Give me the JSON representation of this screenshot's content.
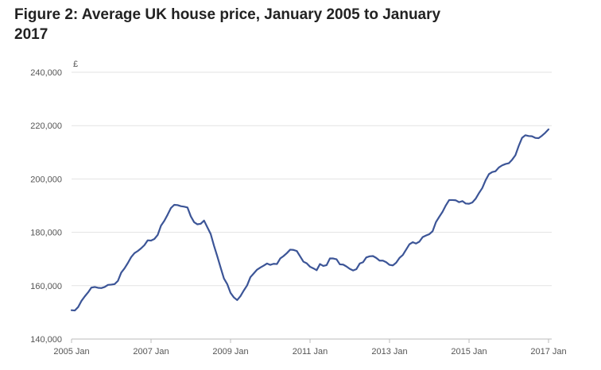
{
  "chart_data": {
    "type": "line",
    "title": "Figure 2: Average UK house price, January 2005 to January 2017",
    "ylabel": "£",
    "xlabel": "",
    "ylim": [
      140000,
      240000
    ],
    "y_ticks": [
      "140,000",
      "160,000",
      "180,000",
      "200,000",
      "220,000",
      "240,000"
    ],
    "y_tick_values": [
      140000,
      160000,
      180000,
      200000,
      220000,
      240000
    ],
    "x_ticks": [
      "2005 Jan",
      "2007 Jan",
      "2009 Jan",
      "2011 Jan",
      "2013 Jan",
      "2015 Jan",
      "2017 Jan"
    ],
    "x_tick_values": [
      2005,
      2007,
      2009,
      2011,
      2013,
      2015,
      2017
    ],
    "grid": true,
    "line_color": "#3c5597",
    "series": [
      {
        "x": [
          "2005-01",
          "2005-02",
          "2005-03",
          "2005-04",
          "2005-05",
          "2005-06",
          "2005-07",
          "2005-08",
          "2005-09",
          "2005-10",
          "2005-11",
          "2005-12",
          "2006-01",
          "2006-02",
          "2006-03",
          "2006-04",
          "2006-05",
          "2006-06",
          "2006-07",
          "2006-08",
          "2006-09",
          "2006-10",
          "2006-11",
          "2006-12",
          "2007-01",
          "2007-02",
          "2007-03",
          "2007-04",
          "2007-05",
          "2007-06",
          "2007-07",
          "2007-08",
          "2007-09",
          "2007-10",
          "2007-11",
          "2007-12",
          "2008-01",
          "2008-02",
          "2008-03",
          "2008-04",
          "2008-05",
          "2008-06",
          "2008-07",
          "2008-08",
          "2008-09",
          "2008-10",
          "2008-11",
          "2008-12",
          "2009-01",
          "2009-02",
          "2009-03",
          "2009-04",
          "2009-05",
          "2009-06",
          "2009-07",
          "2009-08",
          "2009-09",
          "2009-10",
          "2009-11",
          "2009-12",
          "2010-01",
          "2010-02",
          "2010-03",
          "2010-04",
          "2010-05",
          "2010-06",
          "2010-07",
          "2010-08",
          "2010-09",
          "2010-10",
          "2010-11",
          "2010-12",
          "2011-01",
          "2011-02",
          "2011-03",
          "2011-04",
          "2011-05",
          "2011-06",
          "2011-07",
          "2011-08",
          "2011-09",
          "2011-10",
          "2011-11",
          "2011-12",
          "2012-01",
          "2012-02",
          "2012-03",
          "2012-04",
          "2012-05",
          "2012-06",
          "2012-07",
          "2012-08",
          "2012-09",
          "2012-10",
          "2012-11",
          "2012-12",
          "2013-01",
          "2013-02",
          "2013-03",
          "2013-04",
          "2013-05",
          "2013-06",
          "2013-07",
          "2013-08",
          "2013-09",
          "2013-10",
          "2013-11",
          "2013-12",
          "2014-01",
          "2014-02",
          "2014-03",
          "2014-04",
          "2014-05",
          "2014-06",
          "2014-07",
          "2014-08",
          "2014-09",
          "2014-10",
          "2014-11",
          "2014-12",
          "2015-01",
          "2015-02",
          "2015-03",
          "2015-04",
          "2015-05",
          "2015-06",
          "2015-07",
          "2015-08",
          "2015-09",
          "2015-10",
          "2015-11",
          "2015-12",
          "2016-01",
          "2016-02",
          "2016-03",
          "2016-04",
          "2016-05",
          "2016-06",
          "2016-07",
          "2016-08",
          "2016-09",
          "2016-10",
          "2016-11",
          "2016-12",
          "2017-01"
        ],
        "values": [
          150800,
          150700,
          152000,
          154300,
          156000,
          157500,
          159300,
          159500,
          159200,
          159100,
          159500,
          160300,
          160400,
          160600,
          161800,
          164900,
          166500,
          168500,
          170700,
          172200,
          173000,
          174000,
          175200,
          177000,
          176900,
          177500,
          179000,
          182500,
          184300,
          186600,
          189100,
          190300,
          190200,
          189800,
          189600,
          189300,
          186000,
          183800,
          183000,
          183200,
          184400,
          181900,
          179400,
          175000,
          171000,
          166800,
          162700,
          160600,
          157300,
          155600,
          154600,
          156100,
          158200,
          160100,
          163200,
          164600,
          166000,
          166800,
          167500,
          168300,
          167800,
          168200,
          168100,
          170200,
          171100,
          172200,
          173500,
          173400,
          173000,
          171000,
          169000,
          168400,
          167100,
          166500,
          165800,
          168100,
          167400,
          167700,
          170200,
          170200,
          169900,
          168000,
          167900,
          167200,
          166300,
          165700,
          166200,
          168300,
          168800,
          170600,
          171000,
          171100,
          170400,
          169400,
          169400,
          168800,
          167800,
          167600,
          168600,
          170400,
          171500,
          173500,
          175500,
          176300,
          175800,
          176500,
          178200,
          178800,
          179300,
          180400,
          183800,
          185800,
          187700,
          190100,
          192100,
          192100,
          192000,
          191300,
          191700,
          190800,
          190700,
          191200,
          192600,
          194700,
          196600,
          199500,
          201800,
          202600,
          202900,
          204300,
          205100,
          205600,
          205900,
          207200,
          208900,
          212400,
          215400,
          216400,
          216100,
          216000,
          215400,
          215300,
          216200,
          217300,
          218600
        ]
      }
    ]
  }
}
